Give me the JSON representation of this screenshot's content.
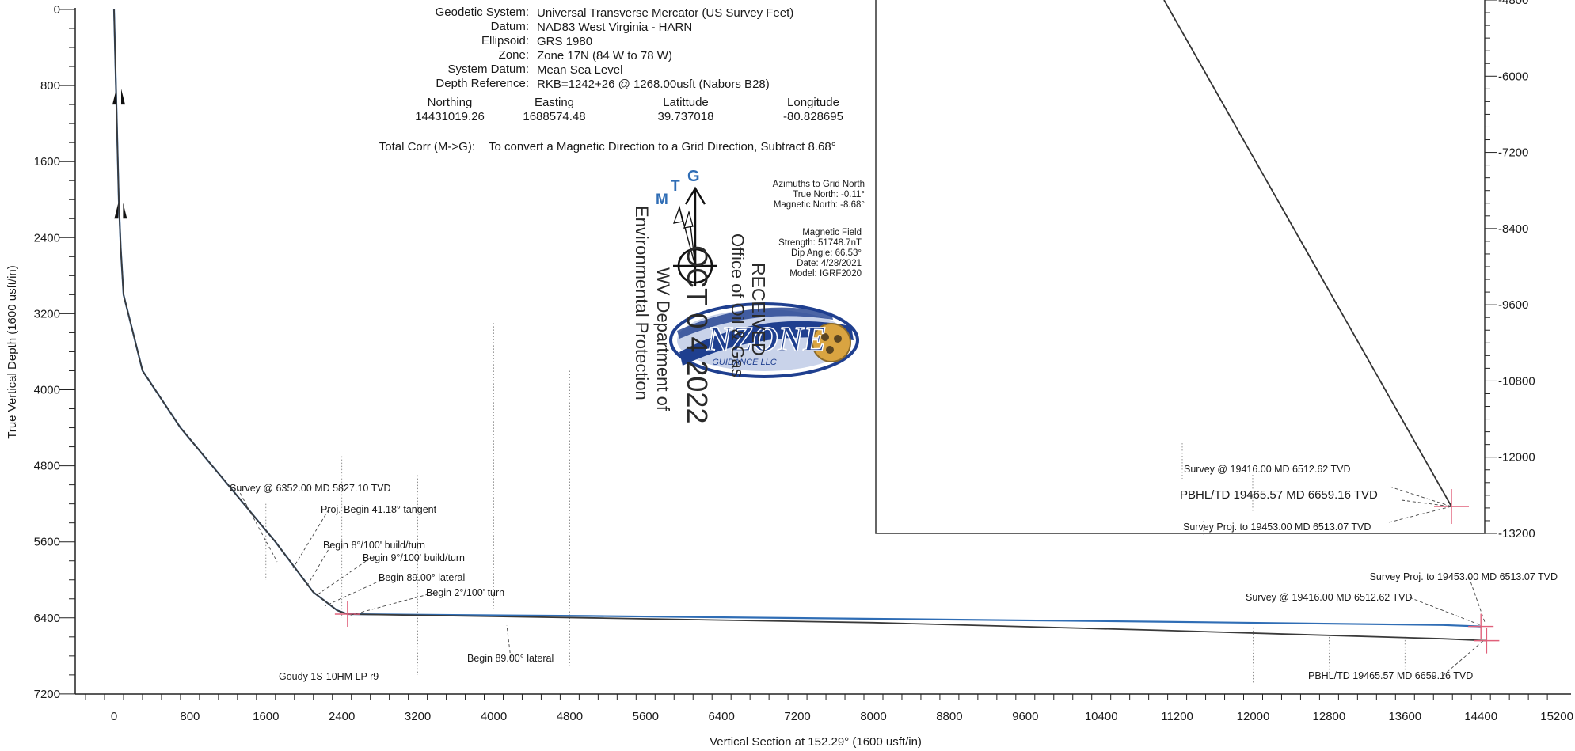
{
  "header": {
    "rows": [
      {
        "label": "Geodetic System:",
        "value": "Universal Transverse Mercator (US Survey Feet)"
      },
      {
        "label": "Datum:",
        "value": "NAD83 West Virginia - HARN"
      },
      {
        "label": "Ellipsoid:",
        "value": "GRS 1980"
      },
      {
        "label": "Zone:",
        "value": "Zone 17N (84 W to 78 W)"
      },
      {
        "label": "System Datum:",
        "value": "Mean Sea Level"
      },
      {
        "label": "Depth Reference:",
        "value": "RKB=1242+26 @ 1268.00usft (Nabors B28)"
      }
    ],
    "coord_headers": [
      "Northing",
      "Easting",
      "Latittude",
      "Longitude"
    ],
    "coord_values": [
      "14431019.26",
      "1688574.48",
      "39.737018",
      "-80.828695"
    ],
    "total_corr_label": "Total Corr (M->G):",
    "total_corr_value": "To convert a Magnetic Direction to a Grid Direction, Subtract 8.68°"
  },
  "north_arrow": {
    "letters": {
      "m": "M",
      "t": "T",
      "g": "G"
    },
    "accent_color": "#2f6db5",
    "azimuth_lines": [
      "Azimuths to Grid North",
      "True North: -0.11°",
      "Magnetic North: -8.68°"
    ],
    "field_lines": [
      "Magnetic Field",
      "Strength: 51748.7nT",
      "Dip Angle: 66.53°",
      "Date: 4/28/2021",
      "Model: IGRF2020"
    ]
  },
  "logo": {
    "text": "NZONE",
    "subtext": "GUIDANCE LLC",
    "colors": [
      "#1f3f8f",
      "#d9a441"
    ]
  },
  "stamp": {
    "lines": [
      "RECEIVED",
      "Office of Oil & Gas",
      "OCT 0 4 2022",
      "WV Department of",
      "Environmental Protection"
    ]
  },
  "chart_data": [
    {
      "type": "line",
      "xlabel": "Vertical Section at 152.29° (1600 usft/in)",
      "ylabel": "True Vertical Depth (1600 usft/in)",
      "xlim": [
        -800,
        15200
      ],
      "ylim": [
        7200,
        0
      ],
      "x_ticks": [
        0,
        800,
        1600,
        2400,
        3200,
        4000,
        4800,
        5600,
        6400,
        7200,
        8000,
        8800,
        9600,
        10400,
        11200,
        12000,
        12800,
        13600,
        14400,
        15200
      ],
      "y_ticks": [
        0,
        800,
        1600,
        2400,
        3200,
        4000,
        4800,
        5600,
        6400,
        7200
      ],
      "series": [
        {
          "color": "#2f6db5",
          "x": [
            0,
            20,
            50,
            70,
            100,
            300,
            700,
            1200,
            1700,
            2100,
            2350,
            2460,
            5000,
            8000,
            11000,
            14000,
            14400
          ],
          "y": [
            0,
            800,
            2000,
            2500,
            3000,
            3800,
            4400,
            5000,
            5600,
            6130,
            6320,
            6360,
            6380,
            6410,
            6440,
            6475,
            6490
          ]
        },
        {
          "color": "#3a3a3a",
          "x": [
            0,
            20,
            50,
            70,
            100,
            300,
            700,
            1200,
            1700,
            2100,
            2350,
            2460,
            5000,
            8000,
            11000,
            14000,
            14460
          ],
          "y": [
            0,
            800,
            2000,
            2500,
            3000,
            3800,
            4400,
            5000,
            5600,
            6130,
            6320,
            6360,
            6400,
            6450,
            6530,
            6620,
            6640
          ]
        }
      ],
      "annotations": [
        {
          "text": "Survey @ 6352.00 MD 5827.10 TVD"
        },
        {
          "text": "Proj. Begin 41.18° tangent"
        },
        {
          "text": "Begin 8°/100' build/turn"
        },
        {
          "text": "Begin 9°/100' build/turn"
        },
        {
          "text": "Begin 89.00° lateral"
        },
        {
          "text": "Begin 2°/100' turn"
        },
        {
          "text": "Begin 89.00° lateral"
        },
        {
          "text": "Goudy 1S-10HM LP r9"
        },
        {
          "text": "Survey Proj. to 19453.00 MD 6513.07 TVD"
        },
        {
          "text": "Survey @ 19416.00 MD 6512.62 TVD"
        },
        {
          "text": "PBHL/TD 19465.57 MD 6659.16 TVD"
        }
      ],
      "marker_color": "#e0607a"
    },
    {
      "type": "line",
      "ylim": [
        -4800,
        -13200
      ],
      "y_ticks": [
        -4800,
        -6000,
        -7200,
        -8400,
        -9600,
        -10800,
        -12000,
        -13200
      ],
      "series": [
        {
          "color": "#3a3a3a",
          "x": [
            1,
            2
          ],
          "y": [
            -4800,
            -12800
          ]
        }
      ],
      "annotations": [
        {
          "text": "Survey @ 19416.00 MD 6512.62 TVD"
        },
        {
          "text": "PBHL/TD 19465.57 MD 6659.16 TVD"
        },
        {
          "text": "Survey Proj. to 19453.00 MD 6513.07 TVD"
        }
      ]
    }
  ]
}
